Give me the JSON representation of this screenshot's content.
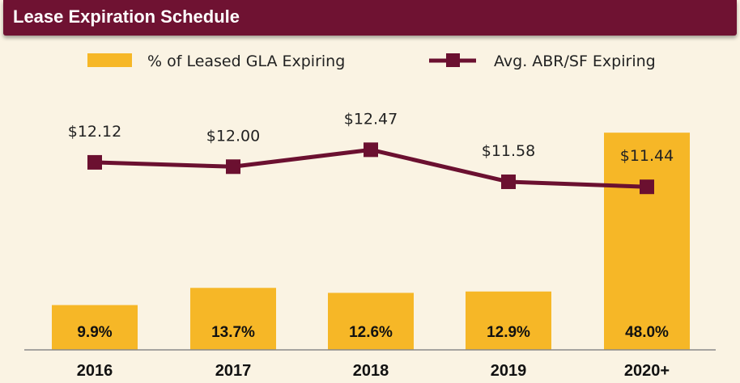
{
  "header": {
    "title": "Lease Expiration Schedule"
  },
  "colors": {
    "bar": "#f6b727",
    "line": "#6b1030",
    "header": "#6f1232",
    "background": "#faf3e3"
  },
  "chart_data": {
    "type": "bar+line",
    "title": "Lease Expiration Schedule",
    "categories": [
      "2016",
      "2017",
      "2018",
      "2019",
      "2020+"
    ],
    "legend_placement": "top",
    "series": [
      {
        "name": "% of Leased GLA Expiring",
        "type": "bar",
        "values": [
          9.9,
          13.7,
          12.6,
          12.9,
          48.0
        ],
        "labels": [
          "9.9%",
          "13.7%",
          "12.6%",
          "12.9%",
          "48.0%"
        ]
      },
      {
        "name": "Avg. ABR/SF Expiring",
        "type": "line",
        "marker": "square",
        "values": [
          12.12,
          12.0,
          12.47,
          11.58,
          11.44
        ],
        "labels": [
          "$12.12",
          "$12.00",
          "$12.47",
          "$11.58",
          "$11.44"
        ]
      }
    ],
    "grid": false
  }
}
